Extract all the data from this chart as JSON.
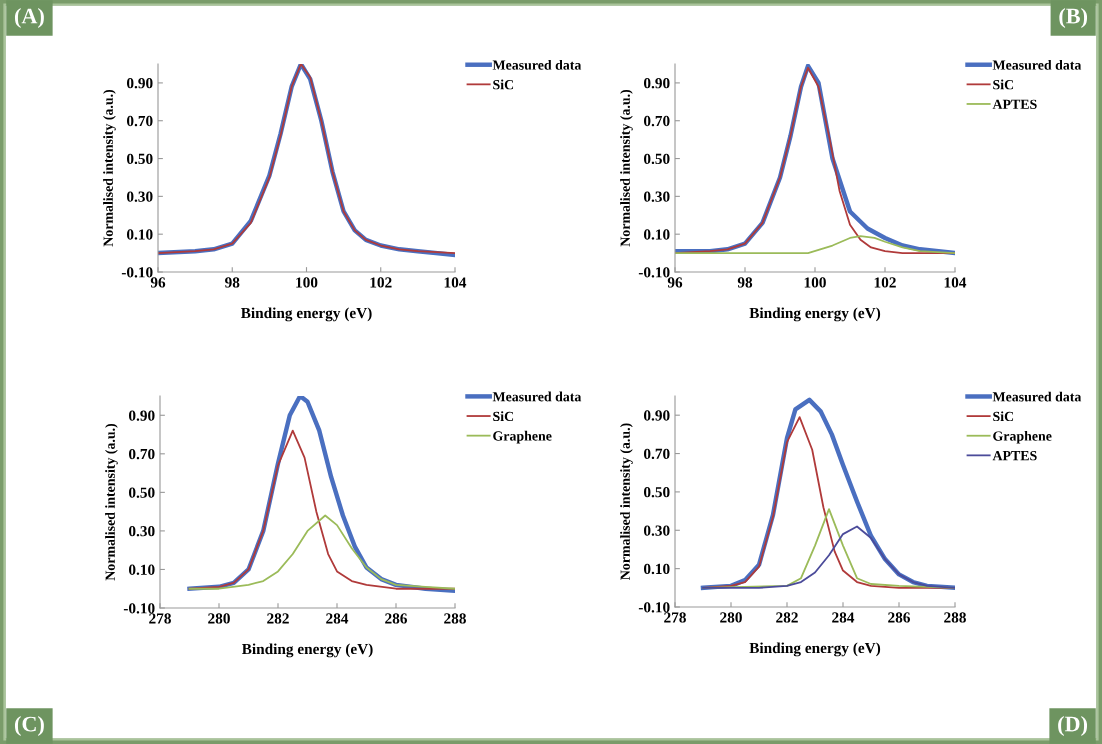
{
  "chart_data": [
    {
      "type": "line",
      "xlabel": "Binding energy (eV)",
      "ylabel": "Normalised intensity (a.u.)",
      "annotations": [
        "(A)"
      ],
      "xlim": [
        96,
        104
      ],
      "xticks": [
        96,
        98,
        100,
        102,
        104
      ],
      "ylim": [
        -0.1,
        1.0
      ],
      "yticks": [
        {
          "value": -0.1,
          "label": "-0.10"
        },
        {
          "value": 0.1,
          "label": "0.10"
        },
        {
          "value": 0.3,
          "label": "0.30"
        },
        {
          "value": 0.5,
          "label": "0.50"
        },
        {
          "value": 0.7,
          "label": "0.70"
        },
        {
          "value": 0.9,
          "label": "0.90"
        }
      ],
      "grid": false,
      "legend": "top right",
      "marker": "none",
      "line_style": "solid",
      "series": [
        {
          "name": "Measured data",
          "color": "#4a6fc0",
          "x": [
            96,
            97,
            97.5,
            98,
            98.5,
            99,
            99.3,
            99.6,
            99.85,
            100.1,
            100.4,
            100.7,
            101,
            101.3,
            101.6,
            102,
            102.5,
            103,
            104
          ],
          "values": [
            0.0,
            0.01,
            0.02,
            0.05,
            0.17,
            0.41,
            0.63,
            0.88,
            1.0,
            0.92,
            0.7,
            0.43,
            0.22,
            0.12,
            0.07,
            0.04,
            0.02,
            0.01,
            -0.01
          ]
        },
        {
          "name": "SiC",
          "color": "#b03a3a",
          "x": [
            96,
            97,
            97.5,
            98,
            98.5,
            99,
            99.3,
            99.6,
            99.85,
            100.1,
            100.4,
            100.7,
            101,
            101.3,
            101.6,
            102,
            102.5,
            103,
            104
          ],
          "values": [
            0.0,
            0.01,
            0.02,
            0.05,
            0.16,
            0.4,
            0.62,
            0.88,
            1.0,
            0.93,
            0.7,
            0.43,
            0.22,
            0.12,
            0.07,
            0.04,
            0.02,
            0.01,
            0.0
          ]
        }
      ]
    },
    {
      "type": "line",
      "xlabel": "Binding energy (eV)",
      "ylabel": "Normalised intensity (a.u.)",
      "annotations": [
        "(B)"
      ],
      "xlim": [
        96,
        104
      ],
      "xticks": [
        96,
        98,
        100,
        102,
        104
      ],
      "ylim": [
        -0.1,
        1.0
      ],
      "yticks": [
        {
          "value": -0.1,
          "label": "-0.10"
        },
        {
          "value": 0.1,
          "label": "0.10"
        },
        {
          "value": 0.3,
          "label": "0.30"
        },
        {
          "value": 0.5,
          "label": "0.50"
        },
        {
          "value": 0.7,
          "label": "0.70"
        },
        {
          "value": 0.9,
          "label": "0.90"
        }
      ],
      "grid": false,
      "legend": "top right",
      "marker": "none",
      "line_style": "solid",
      "series": [
        {
          "name": "Measured data",
          "color": "#4a6fc0",
          "x": [
            96,
            97,
            97.5,
            98,
            98.5,
            99,
            99.3,
            99.6,
            99.8,
            100.1,
            100.5,
            101,
            101.5,
            102,
            102.5,
            103,
            104
          ],
          "values": [
            0.01,
            0.01,
            0.02,
            0.05,
            0.16,
            0.4,
            0.62,
            0.88,
            0.99,
            0.9,
            0.5,
            0.22,
            0.13,
            0.08,
            0.04,
            0.02,
            0.0
          ]
        },
        {
          "name": "SiC",
          "color": "#b03a3a",
          "x": [
            96,
            97,
            97.5,
            98,
            98.5,
            99,
            99.3,
            99.6,
            99.8,
            100.1,
            100.4,
            100.7,
            101,
            101.3,
            101.6,
            102,
            102.5,
            104
          ],
          "values": [
            0.0,
            0.01,
            0.02,
            0.05,
            0.16,
            0.4,
            0.62,
            0.88,
            0.98,
            0.88,
            0.62,
            0.33,
            0.15,
            0.07,
            0.03,
            0.01,
            0.0,
            0.0
          ]
        },
        {
          "name": "APTES",
          "color": "#9bbb59",
          "x": [
            96,
            98,
            99.8,
            100.5,
            101,
            101.3,
            101.7,
            102,
            102.5,
            103,
            104
          ],
          "values": [
            0.0,
            0.0,
            0.0,
            0.04,
            0.08,
            0.09,
            0.08,
            0.06,
            0.03,
            0.01,
            0.0
          ]
        }
      ]
    },
    {
      "type": "line",
      "xlabel": "Binding energy (eV)",
      "ylabel": "Normalised intensity (a.u.)",
      "annotations": [
        "(C)"
      ],
      "xlim": [
        278,
        288
      ],
      "xticks": [
        278,
        280,
        282,
        284,
        286,
        288
      ],
      "ylim": [
        -0.1,
        1.0
      ],
      "yticks": [
        {
          "value": -0.1,
          "label": "-0.10"
        },
        {
          "value": 0.1,
          "label": "0.10"
        },
        {
          "value": 0.3,
          "label": "0.30"
        },
        {
          "value": 0.5,
          "label": "0.50"
        },
        {
          "value": 0.7,
          "label": "0.70"
        },
        {
          "value": 0.9,
          "label": "0.90"
        }
      ],
      "grid": false,
      "legend": "top right",
      "marker": "none",
      "line_style": "solid",
      "series": [
        {
          "name": "Measured data",
          "color": "#4a6fc0",
          "x": [
            279,
            280,
            280.5,
            281,
            281.5,
            282,
            282.4,
            282.75,
            283,
            283.4,
            283.8,
            284.2,
            284.6,
            285,
            285.5,
            286,
            287,
            288
          ],
          "values": [
            0.0,
            0.01,
            0.03,
            0.1,
            0.3,
            0.65,
            0.9,
            1.0,
            0.97,
            0.82,
            0.58,
            0.38,
            0.22,
            0.11,
            0.05,
            0.02,
            0.0,
            -0.01
          ]
        },
        {
          "name": "SiC",
          "color": "#b03a3a",
          "x": [
            279,
            280,
            280.5,
            281,
            281.5,
            282,
            282.5,
            282.9,
            283.3,
            283.7,
            284,
            284.5,
            285,
            286,
            288
          ],
          "values": [
            0.0,
            0.01,
            0.03,
            0.1,
            0.3,
            0.64,
            0.82,
            0.68,
            0.4,
            0.18,
            0.09,
            0.04,
            0.02,
            0.0,
            0.0
          ]
        },
        {
          "name": "Graphene",
          "color": "#9bbb59",
          "x": [
            279,
            280,
            281,
            281.5,
            282,
            282.5,
            283,
            283.6,
            284,
            284.5,
            285,
            285.5,
            286,
            287,
            288
          ],
          "values": [
            0.0,
            0.0,
            0.02,
            0.04,
            0.09,
            0.18,
            0.3,
            0.38,
            0.33,
            0.21,
            0.11,
            0.05,
            0.02,
            0.01,
            0.0
          ]
        }
      ]
    },
    {
      "type": "line",
      "xlabel": "Binding energy (eV)",
      "ylabel": "Normalised intensity (a.u.)",
      "annotations": [
        "(D)"
      ],
      "xlim": [
        278,
        288
      ],
      "xticks": [
        278,
        280,
        282,
        284,
        286,
        288
      ],
      "ylim": [
        -0.1,
        1.0
      ],
      "yticks": [
        {
          "value": -0.1,
          "label": "-0.10"
        },
        {
          "value": 0.1,
          "label": "0.10"
        },
        {
          "value": 0.3,
          "label": "0.30"
        },
        {
          "value": 0.5,
          "label": "0.50"
        },
        {
          "value": 0.7,
          "label": "0.70"
        },
        {
          "value": 0.9,
          "label": "0.90"
        }
      ],
      "grid": false,
      "legend": "top right",
      "marker": "none",
      "line_style": "solid",
      "series": [
        {
          "name": "Measured data",
          "color": "#4a6fc0",
          "x": [
            279,
            280,
            280.5,
            281,
            281.5,
            282,
            282.3,
            282.8,
            283.2,
            283.6,
            284,
            284.5,
            285,
            285.5,
            286,
            286.5,
            287,
            288
          ],
          "values": [
            0.0,
            0.01,
            0.04,
            0.12,
            0.38,
            0.78,
            0.93,
            0.98,
            0.92,
            0.8,
            0.64,
            0.45,
            0.27,
            0.15,
            0.07,
            0.03,
            0.01,
            0.0
          ]
        },
        {
          "name": "SiC",
          "color": "#b03a3a",
          "x": [
            279,
            280,
            280.5,
            281,
            281.5,
            282,
            282.45,
            282.9,
            283.3,
            283.7,
            284,
            284.5,
            285,
            286,
            288
          ],
          "values": [
            0.0,
            0.01,
            0.03,
            0.11,
            0.37,
            0.76,
            0.89,
            0.72,
            0.42,
            0.19,
            0.09,
            0.03,
            0.01,
            0.0,
            0.0
          ]
        },
        {
          "name": "Graphene",
          "color": "#9bbb59",
          "x": [
            279,
            282,
            282.5,
            283,
            283.5,
            284,
            284.5,
            285,
            286,
            288
          ],
          "values": [
            0.0,
            0.01,
            0.05,
            0.22,
            0.41,
            0.22,
            0.05,
            0.02,
            0.01,
            0.0
          ]
        },
        {
          "name": "APTES",
          "color": "#4b4b9a",
          "x": [
            279,
            281,
            282,
            282.5,
            283,
            283.5,
            284,
            284.5,
            285,
            285.5,
            286,
            286.5,
            287,
            288
          ],
          "values": [
            0.0,
            0.0,
            0.01,
            0.03,
            0.08,
            0.17,
            0.28,
            0.32,
            0.26,
            0.15,
            0.07,
            0.03,
            0.01,
            0.0
          ]
        }
      ]
    }
  ]
}
